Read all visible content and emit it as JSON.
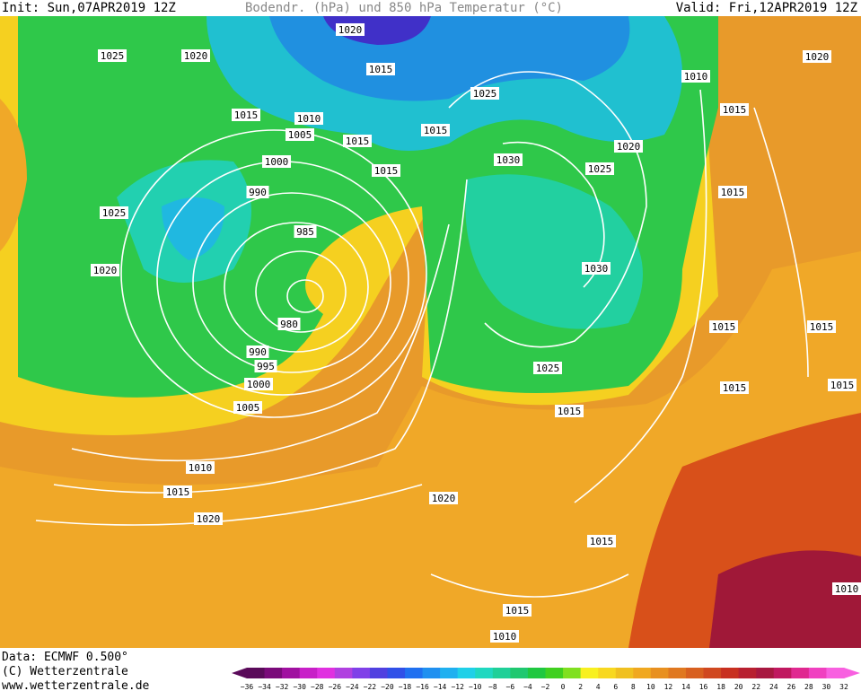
{
  "header": {
    "init": "Init: Sun,07APR2019 12Z",
    "title": "Bodendr. (hPa) und 850 hPa Temperatur (°C)",
    "valid": "Valid: Fri,12APR2019 12Z"
  },
  "map": {
    "isobar_labels": [
      "1020",
      "1025",
      "1020",
      "1015",
      "1025",
      "1010",
      "1020",
      "1015",
      "1010",
      "1005",
      "1015",
      "1015",
      "1015",
      "1000",
      "1015",
      "1020",
      "1030",
      "1025",
      "1015",
      "990",
      "1025",
      "985",
      "1020",
      "1030",
      "980",
      "1015",
      "1015",
      "990",
      "995",
      "1025",
      "1000",
      "1015",
      "1015",
      "1005",
      "1015",
      "1010",
      "1015",
      "1020",
      "1020",
      "1015",
      "1010",
      "1015",
      "1010"
    ]
  },
  "footer": {
    "data": "Data: ECMWF  0.500°",
    "copyright": "(C) Wetterzentrale",
    "url": "www.wetterzentrale.de"
  },
  "colorbar": {
    "labels": [
      "−36",
      "−34",
      "−32",
      "−30",
      "−28",
      "−26",
      "−24",
      "−22",
      "−20",
      "−18",
      "−16",
      "−14",
      "−12",
      "−10",
      "−8",
      "−6",
      "−4",
      "−2",
      "0",
      "2",
      "4",
      "6",
      "8",
      "10",
      "12",
      "14",
      "16",
      "18",
      "20",
      "22",
      "24",
      "26",
      "28",
      "30",
      "32"
    ]
  }
}
